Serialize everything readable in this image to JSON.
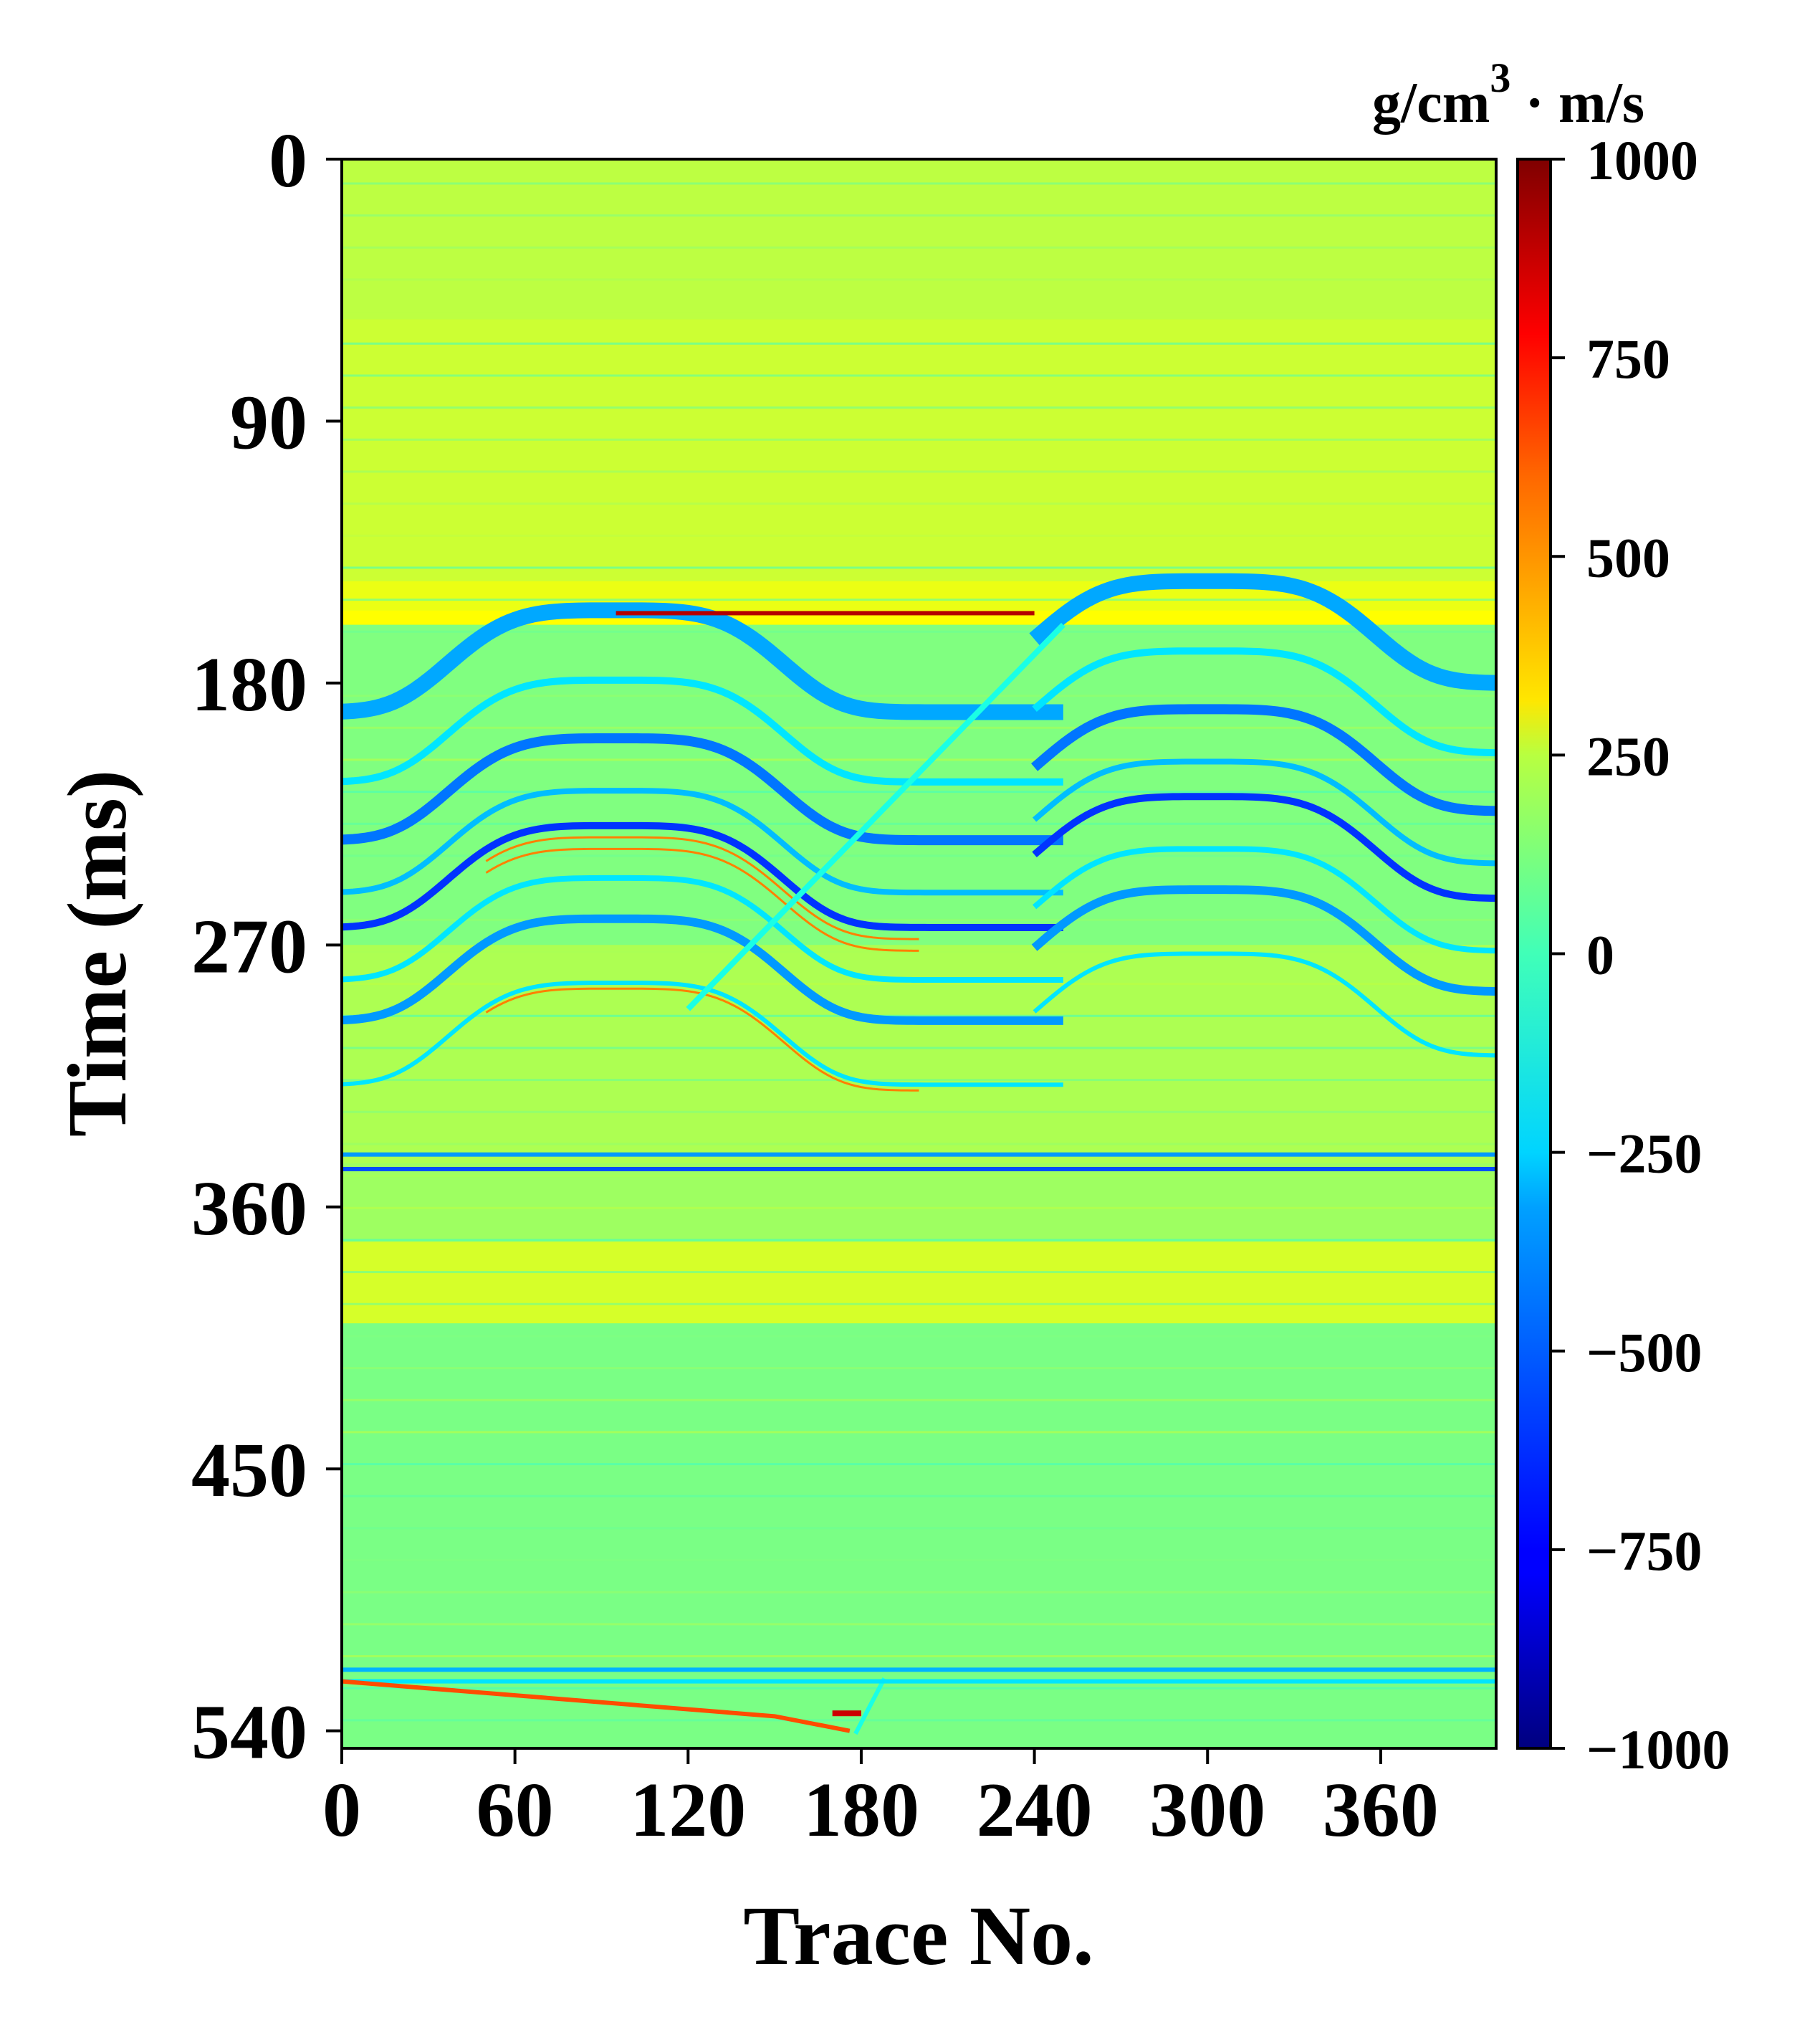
{
  "chart_data": {
    "type": "heatmap",
    "title": "",
    "xlabel": "Trace No.",
    "ylabel": "Time (ms)",
    "xlim": [
      0,
      400
    ],
    "ylim": [
      546,
      0
    ],
    "x_ticks": [
      0,
      60,
      120,
      180,
      240,
      300,
      360
    ],
    "y_ticks": [
      0,
      90,
      180,
      270,
      360,
      450,
      540
    ],
    "colorbar": {
      "label_main": "g/cm",
      "label_sup": "3",
      "label_rest": " · m/s",
      "range": [
        -1000,
        1000
      ],
      "ticks": [
        1000,
        750,
        500,
        250,
        0,
        -250,
        -500,
        -750,
        -1000
      ],
      "tick_labels": [
        "1000",
        "750",
        "500",
        "250",
        "0",
        "−250",
        "−500",
        "−750",
        "−1000"
      ],
      "colormap": "jet"
    },
    "field": {
      "description_values": "Seismic impedance section; background roughly 0 to 150, horizontal layers, two anticlinal folds cut by a dipping fault",
      "background_value": 70,
      "horizontal_bands": [
        {
          "t0": 0,
          "t1": 55,
          "value": 120
        },
        {
          "t0": 55,
          "t1": 145,
          "value": 150
        },
        {
          "t0": 145,
          "t1": 155,
          "value": 210
        },
        {
          "t0": 155,
          "t1": 160,
          "value": 250
        },
        {
          "t0": 160,
          "t1": 270,
          "value": 0
        },
        {
          "t0": 270,
          "t1": 345,
          "value": 90
        },
        {
          "t0": 345,
          "t1": 400,
          "value": 60
        },
        {
          "t0": 372,
          "t1": 400,
          "value": 170
        },
        {
          "t0": 400,
          "t1": 546,
          "value": -10
        }
      ],
      "strong_reflectors": [
        {
          "t": 156,
          "x0": 95,
          "x1": 240,
          "value": 900
        },
        {
          "t": 342,
          "x0": 0,
          "x1": 400,
          "value": -450
        },
        {
          "t": 347,
          "x0": 0,
          "x1": 400,
          "value": -600
        },
        {
          "t": 519,
          "x0": 0,
          "x1": 400,
          "value": -400
        },
        {
          "t": 523,
          "x0": 0,
          "x1": 400,
          "value": -300
        }
      ]
    }
  }
}
